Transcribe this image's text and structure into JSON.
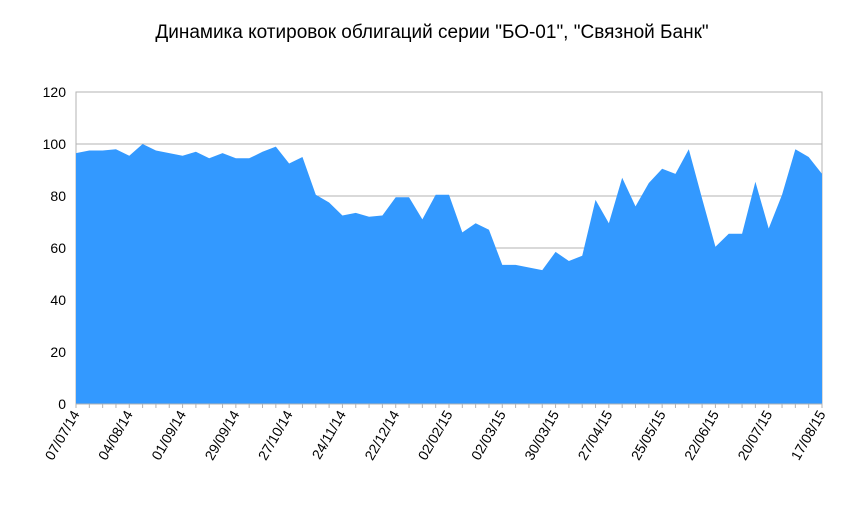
{
  "chart_data": {
    "type": "area",
    "title": "Динамика котировок облигаций серии \"БО-01\", \"Связной Банк\"",
    "xlabel": "",
    "ylabel": "",
    "ylim": [
      0,
      120
    ],
    "yticks": [
      0,
      20,
      40,
      60,
      80,
      100,
      120
    ],
    "grid": true,
    "legend": "none",
    "color": "#3399ff",
    "x_tick_labels": [
      "07/07/14",
      "04/08/14",
      "01/09/14",
      "29/09/14",
      "27/10/14",
      "24/11/14",
      "22/12/14",
      "02/02/15",
      "02/03/15",
      "30/03/15",
      "27/04/15",
      "25/05/15",
      "22/06/15",
      "20/07/15",
      "17/08/15"
    ],
    "x_tick_positions": [
      0,
      4,
      8,
      12,
      16,
      20,
      24,
      28,
      32,
      36,
      40,
      44,
      48,
      52,
      56
    ],
    "values": [
      96.5,
      97.5,
      97.5,
      98,
      95.5,
      100,
      97.5,
      96.5,
      95.5,
      97,
      94.5,
      96.5,
      94.5,
      94.5,
      97,
      99,
      92.5,
      95,
      80.5,
      77.5,
      72.5,
      73.5,
      72,
      72.5,
      79.5,
      79.5,
      71,
      80.5,
      80.5,
      66,
      69.5,
      67,
      53.5,
      53.5,
      52.5,
      51.5,
      58.5,
      55,
      57,
      78.5,
      69.5,
      87,
      76,
      85,
      90.5,
      88.5,
      98,
      79,
      60.5,
      65.5,
      65.5,
      85.5,
      67.5,
      80.5,
      98,
      95,
      88.5
    ]
  }
}
